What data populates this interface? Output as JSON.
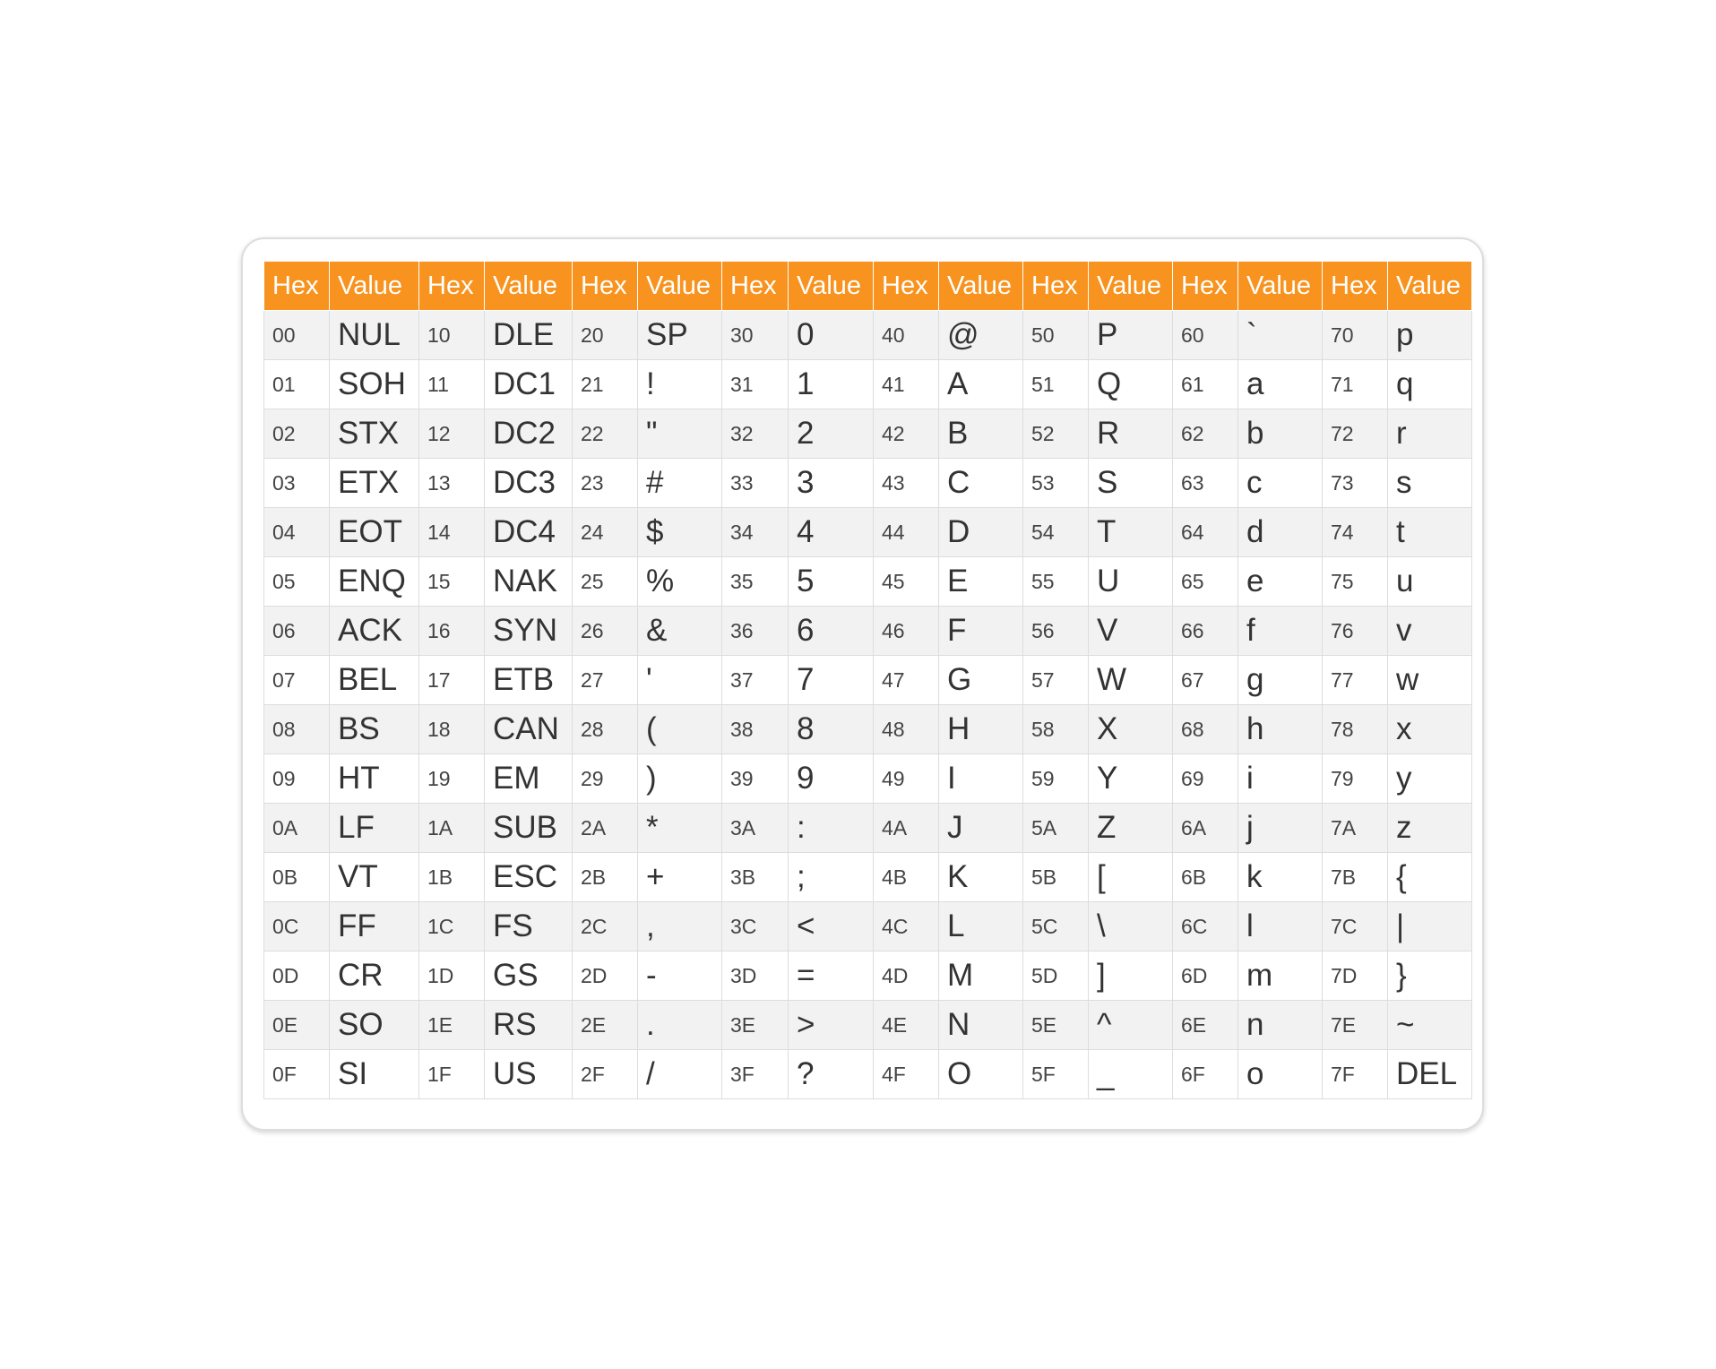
{
  "table": {
    "header": [
      "Hex",
      "Value",
      "Hex",
      "Value",
      "Hex",
      "Value",
      "Hex",
      "Value",
      "Hex",
      "Value",
      "Hex",
      "Value",
      "Hex",
      "Value",
      "Hex",
      "Value"
    ],
    "rows": [
      [
        "00",
        "NUL",
        "10",
        "DLE",
        "20",
        "SP",
        "30",
        "0",
        "40",
        "@",
        "50",
        "P",
        "60",
        "`",
        "70",
        "p"
      ],
      [
        "01",
        "SOH",
        "11",
        "DC1",
        "21",
        "!",
        "31",
        "1",
        "41",
        "A",
        "51",
        "Q",
        "61",
        "a",
        "71",
        "q"
      ],
      [
        "02",
        "STX",
        "12",
        "DC2",
        "22",
        "\"",
        "32",
        "2",
        "42",
        "B",
        "52",
        "R",
        "62",
        "b",
        "72",
        "r"
      ],
      [
        "03",
        "ETX",
        "13",
        "DC3",
        "23",
        "#",
        "33",
        "3",
        "43",
        "C",
        "53",
        "S",
        "63",
        "c",
        "73",
        "s"
      ],
      [
        "04",
        "EOT",
        "14",
        "DC4",
        "24",
        "$",
        "34",
        "4",
        "44",
        "D",
        "54",
        "T",
        "64",
        "d",
        "74",
        "t"
      ],
      [
        "05",
        "ENQ",
        "15",
        "NAK",
        "25",
        "%",
        "35",
        "5",
        "45",
        "E",
        "55",
        "U",
        "65",
        "e",
        "75",
        "u"
      ],
      [
        "06",
        "ACK",
        "16",
        "SYN",
        "26",
        "&",
        "36",
        "6",
        "46",
        "F",
        "56",
        "V",
        "66",
        "f",
        "76",
        "v"
      ],
      [
        "07",
        "BEL",
        "17",
        "ETB",
        "27",
        "'",
        "37",
        "7",
        "47",
        "G",
        "57",
        "W",
        "67",
        "g",
        "77",
        "w"
      ],
      [
        "08",
        "BS",
        "18",
        "CAN",
        "28",
        "(",
        "38",
        "8",
        "48",
        "H",
        "58",
        "X",
        "68",
        "h",
        "78",
        "x"
      ],
      [
        "09",
        "HT",
        "19",
        "EM",
        "29",
        ")",
        "39",
        "9",
        "49",
        "I",
        "59",
        "Y",
        "69",
        "i",
        "79",
        "y"
      ],
      [
        "0A",
        "LF",
        "1A",
        "SUB",
        "2A",
        "*",
        "3A",
        ":",
        "4A",
        "J",
        "5A",
        "Z",
        "6A",
        "j",
        "7A",
        "z"
      ],
      [
        "0B",
        "VT",
        "1B",
        "ESC",
        "2B",
        "+",
        "3B",
        ";",
        "4B",
        "K",
        "5B",
        "[",
        "6B",
        "k",
        "7B",
        "{"
      ],
      [
        "0C",
        "FF",
        "1C",
        "FS",
        "2C",
        ",",
        "3C",
        "<",
        "4C",
        "L",
        "5C",
        "\\",
        "6C",
        "l",
        "7C",
        "|"
      ],
      [
        "0D",
        "CR",
        "1D",
        "GS",
        "2D",
        "-",
        "3D",
        "=",
        "4D",
        "M",
        "5D",
        "]",
        "6D",
        "m",
        "7D",
        "}"
      ],
      [
        "0E",
        "SO",
        "1E",
        "RS",
        "2E",
        ".",
        "3E",
        ">",
        "4E",
        "N",
        "5E",
        "^",
        "6E",
        "n",
        "7E",
        "~"
      ],
      [
        "0F",
        "SI",
        "1F",
        "US",
        "2F",
        "/",
        "3F",
        "?",
        "4F",
        "O",
        "5F",
        "_",
        "6F",
        "o",
        "7F",
        "DEL"
      ]
    ]
  },
  "colors": {
    "header_bg": "#f7931e",
    "header_text": "#ffffff",
    "stripe": "#f2f2f2",
    "border": "#dddddd"
  }
}
